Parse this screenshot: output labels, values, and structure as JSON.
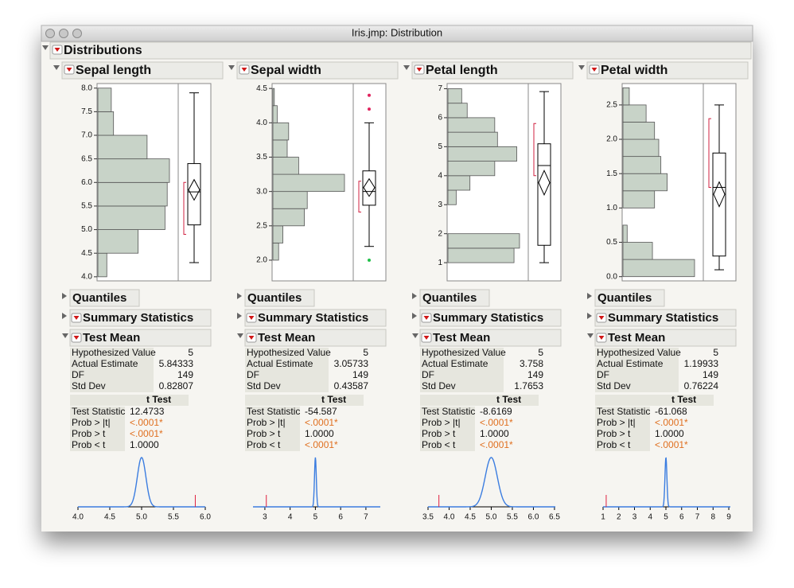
{
  "window": {
    "title": "Iris.jmp: Distribution"
  },
  "report": {
    "title": "Distributions",
    "panels": [
      {
        "title": "Sepal length",
        "histogram": {
          "bins": [
            4,
            4.5,
            5,
            5.5,
            6,
            6.5,
            7,
            7.5,
            8
          ],
          "counts": [
            4,
            18,
            30,
            31,
            32,
            22,
            7,
            6
          ],
          "color": "#c8d3c8",
          "ylim": [
            3.93,
            8.08
          ],
          "yticks": [
            {
              "value": 4,
              "label": "4.0"
            },
            {
              "value": 4.5,
              "label": "4.5"
            },
            {
              "value": 5,
              "label": "5.0"
            },
            {
              "value": 5.5,
              "label": "5.5"
            },
            {
              "value": 6,
              "label": "6.0"
            },
            {
              "value": 6.5,
              "label": "6.5"
            },
            {
              "value": 7,
              "label": "7.0"
            },
            {
              "value": 7.5,
              "label": "7.5"
            },
            {
              "value": 8,
              "label": "8.0"
            }
          ]
        },
        "boxplot": {
          "min": 4.3,
          "q1": 5.1,
          "median": 5.8,
          "q3": 6.4,
          "max": 7.9,
          "shortest_half": [
            4.9,
            6.0
          ],
          "outliers": []
        },
        "sections": [
          "Quantiles",
          "Summary Statistics",
          "Test Mean"
        ],
        "test_mean": [
          [
            "Hypothesized Value",
            5
          ],
          [
            "Actual Estimate",
            5.84333
          ],
          [
            "DF",
            149
          ],
          [
            "Std Dev",
            0.82807
          ]
        ],
        "t_test": {
          "title": "t Test",
          "rows": [
            [
              "Test Statistic",
              12.4733
            ],
            [
              "Prob > |t|",
              "<.0001*"
            ],
            [
              "Prob > t",
              "<.0001*"
            ],
            [
              "Prob < t",
              "1.0000"
            ]
          ]
        },
        "test_plot": {
          "xlim": [
            4,
            6
          ],
          "xticks": [
            {
              "value": 4,
              "label": "4.0"
            },
            {
              "value": 4.5,
              "label": "4.5"
            },
            {
              "value": 5,
              "label": "5.0"
            },
            {
              "value": 5.5,
              "label": "5.5"
            },
            {
              "value": 6,
              "label": "6.0"
            }
          ]
        }
      },
      {
        "title": "Sepal width",
        "histogram": {
          "bins": [
            2,
            2.25,
            2.5,
            2.75,
            3,
            3.25,
            3.5,
            3.75,
            4,
            4.25,
            4.5
          ],
          "counts": [
            4,
            7,
            22,
            24,
            50,
            18,
            10,
            11,
            3,
            1
          ],
          "color": "#c8d3c8",
          "ylim": [
            1.71,
            4.56
          ],
          "yticks": [
            {
              "value": 2,
              "label": "2.0"
            },
            2.5,
            {
              "value": 3,
              "label": "3.0"
            },
            3.5,
            {
              "value": 4,
              "label": "4.0"
            },
            4.5
          ]
        },
        "boxplot": {
          "min": 2.2,
          "q1": 2.8,
          "median": 3.0,
          "q3": 3.3,
          "max": 4.0,
          "shortest_half": [
            2.7,
            3.15
          ],
          "outliers": [
            {
              "value": 4.4,
              "color": "#e0245e"
            },
            {
              "value": 4.2,
              "color": "#e0245e"
            },
            {
              "value": 2.0,
              "color": "#22c04a"
            }
          ]
        },
        "sections": [
          "Quantiles",
          "Summary Statistics",
          "Test Mean"
        ],
        "test_mean": [
          [
            "Hypothesized Value",
            5
          ],
          [
            "Actual Estimate",
            3.05733
          ],
          [
            "DF",
            149
          ],
          [
            "Std Dev",
            0.43587
          ]
        ],
        "t_test": {
          "title": "t Test",
          "rows": [
            [
              "Test Statistic",
              -54.587
            ],
            [
              "Prob > |t|",
              "<.0001*"
            ],
            [
              "Prob > t",
              "1.0000"
            ],
            [
              "Prob < t",
              "<.0001*"
            ]
          ]
        },
        "test_plot": {
          "xlim": [
            2.53,
            7.57
          ],
          "xticks": [
            3,
            4,
            5,
            6,
            7
          ]
        }
      },
      {
        "title": "Petal length",
        "histogram": {
          "bins": [
            1,
            1.5,
            2,
            2.5,
            3,
            3.5,
            4,
            4.5,
            5,
            5.5,
            6,
            6.5,
            7
          ],
          "counts": [
            24,
            26,
            0,
            0,
            3,
            8,
            17,
            25,
            18,
            17,
            7,
            5
          ],
          "color": "#c8d3c8",
          "ylim": [
            0.4,
            7.15
          ],
          "yticks": [
            1,
            2,
            3,
            4,
            5,
            6,
            7
          ]
        },
        "boxplot": {
          "min": 1.0,
          "q1": 1.6,
          "median": 4.35,
          "q3": 5.1,
          "max": 6.9,
          "shortest_half": [
            4.0,
            5.8
          ],
          "outliers": []
        },
        "sections": [
          "Quantiles",
          "Summary Statistics",
          "Test Mean"
        ],
        "test_mean": [
          [
            "Hypothesized Value",
            5
          ],
          [
            "Actual Estimate",
            3.758
          ],
          [
            "DF",
            149
          ],
          [
            "Std Dev",
            1.7653
          ]
        ],
        "t_test": {
          "title": "t Test",
          "rows": [
            [
              "Test Statistic",
              -8.6169
            ],
            [
              "Prob > |t|",
              "<.0001*"
            ],
            [
              "Prob > t",
              "1.0000"
            ],
            [
              "Prob < t",
              "<.0001*"
            ]
          ]
        },
        "test_plot": {
          "xlim": [
            3.5,
            6.52
          ],
          "xticks": [
            3.5,
            {
              "value": 4,
              "label": "4.0"
            },
            4.5,
            {
              "value": 5,
              "label": "5.0"
            },
            5.5,
            {
              "value": 6,
              "label": "6.0"
            },
            6.5
          ]
        }
      },
      {
        "title": "Petal width",
        "histogram": {
          "bins": [
            0,
            0.25,
            0.5,
            0.75,
            1,
            1.25,
            1.5,
            1.75,
            2,
            2.25,
            2.5,
            2.75
          ],
          "counts": [
            34,
            14,
            2,
            0,
            15,
            21,
            18,
            17,
            15,
            11,
            3
          ],
          "color": "#c8d3c8",
          "ylim": [
            -0.05,
            2.8
          ],
          "yticks": [
            {
              "value": 0,
              "label": "0.0"
            },
            0.5,
            {
              "value": 1,
              "label": "1.0"
            },
            1.5,
            {
              "value": 2,
              "label": "2.0"
            },
            2.5
          ]
        },
        "boxplot": {
          "min": 0.1,
          "q1": 0.3,
          "median": 1.3,
          "q3": 1.8,
          "max": 2.5,
          "shortest_half": [
            1.3,
            2.3
          ],
          "outliers": []
        },
        "sections": [
          "Quantiles",
          "Summary Statistics",
          "Test Mean"
        ],
        "test_mean": [
          [
            "Hypothesized Value",
            5
          ],
          [
            "Actual Estimate",
            1.19933
          ],
          [
            "DF",
            149
          ],
          [
            "Std Dev",
            0.76224
          ]
        ],
        "t_test": {
          "title": "t Test",
          "rows": [
            [
              "Test Statistic",
              -61.068
            ],
            [
              "Prob > |t|",
              "<.0001*"
            ],
            [
              "Prob > t",
              "1.0000"
            ],
            [
              "Prob < t",
              "<.0001*"
            ]
          ]
        },
        "test_plot": {
          "xlim": [
            1,
            9.1
          ],
          "xticks": [
            1,
            2,
            3,
            4,
            5,
            6,
            7,
            8,
            9
          ]
        }
      }
    ]
  }
}
